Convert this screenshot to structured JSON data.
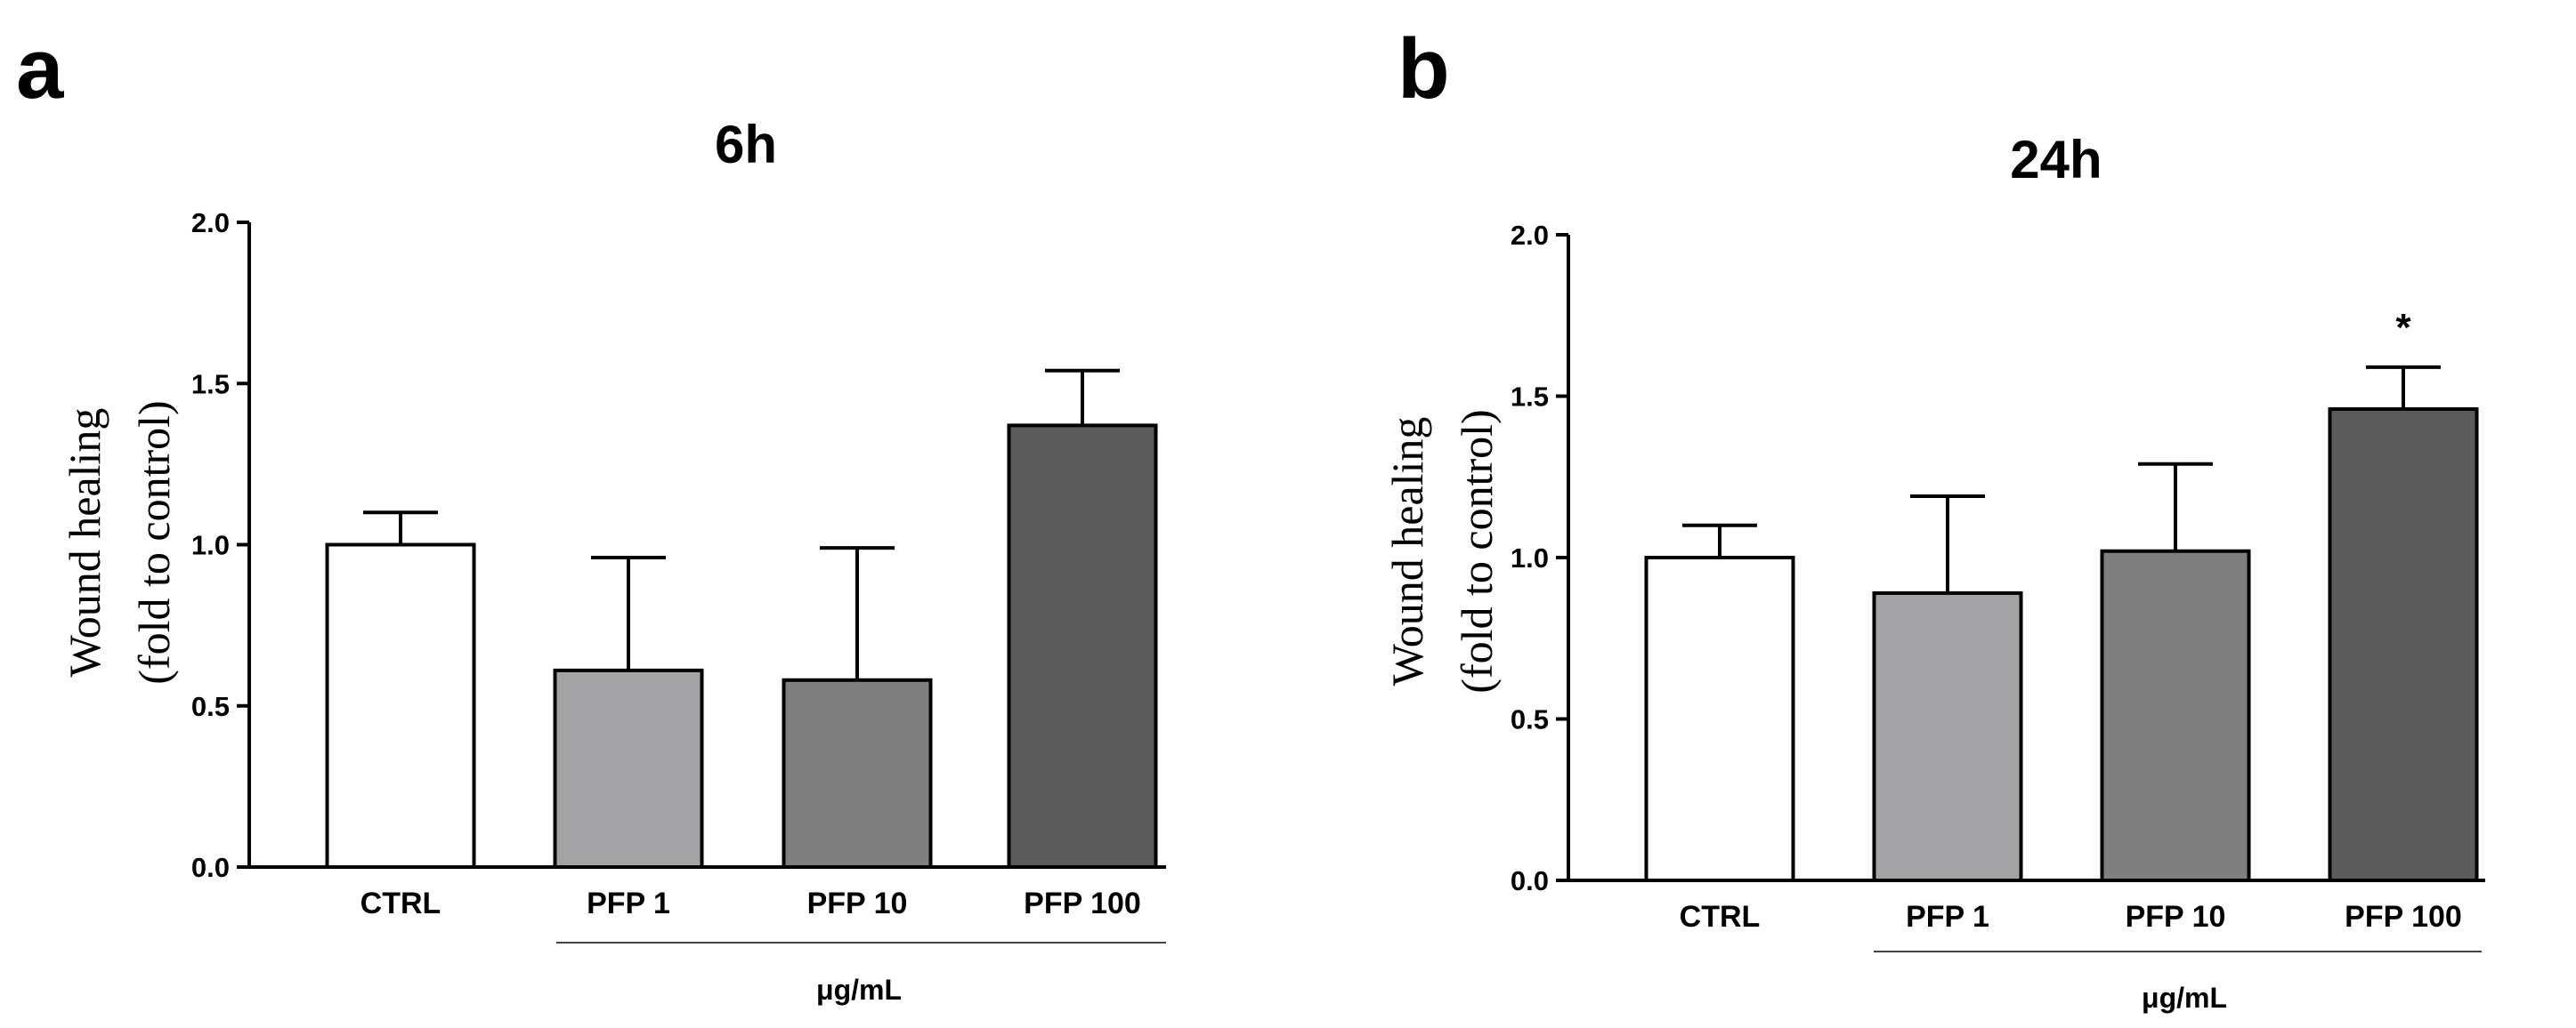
{
  "chart_data": [
    {
      "type": "bar",
      "panel": "a",
      "title": "6h",
      "ylabel_line1": "Wound healing",
      "ylabel_line2": "(fold to control)",
      "ylim": [
        0,
        2.0
      ],
      "yticks": [
        "0.0",
        "0.5",
        "1.0",
        "1.5",
        "2.0"
      ],
      "categories": [
        "CTRL",
        "PFP 1",
        "PFP 10",
        "PFP 100"
      ],
      "values": [
        1.0,
        0.61,
        0.58,
        1.37
      ],
      "errors": [
        0.1,
        0.35,
        0.41,
        0.17
      ],
      "significance": [
        "",
        "",
        "",
        ""
      ],
      "group_label": "μg/mL",
      "colors": [
        "#ffffff",
        "#a3a3a6",
        "#7f7f7f",
        "#5b5b5b"
      ]
    },
    {
      "type": "bar",
      "panel": "b",
      "title": "24h",
      "ylabel_line1": "Wound healing",
      "ylabel_line2": "(fold to control)",
      "ylim": [
        0,
        2.0
      ],
      "yticks": [
        "0.0",
        "0.5",
        "1.0",
        "1.5",
        "2.0"
      ],
      "categories": [
        "CTRL",
        "PFP 1",
        "PFP 10",
        "PFP 100"
      ],
      "values": [
        1.0,
        0.89,
        1.02,
        1.46
      ],
      "errors": [
        0.1,
        0.3,
        0.27,
        0.13
      ],
      "significance": [
        "",
        "",
        "",
        "*"
      ],
      "group_label": "μg/mL",
      "colors": [
        "#ffffff",
        "#a3a3a6",
        "#7f7f7f",
        "#5b5b5b"
      ]
    }
  ]
}
